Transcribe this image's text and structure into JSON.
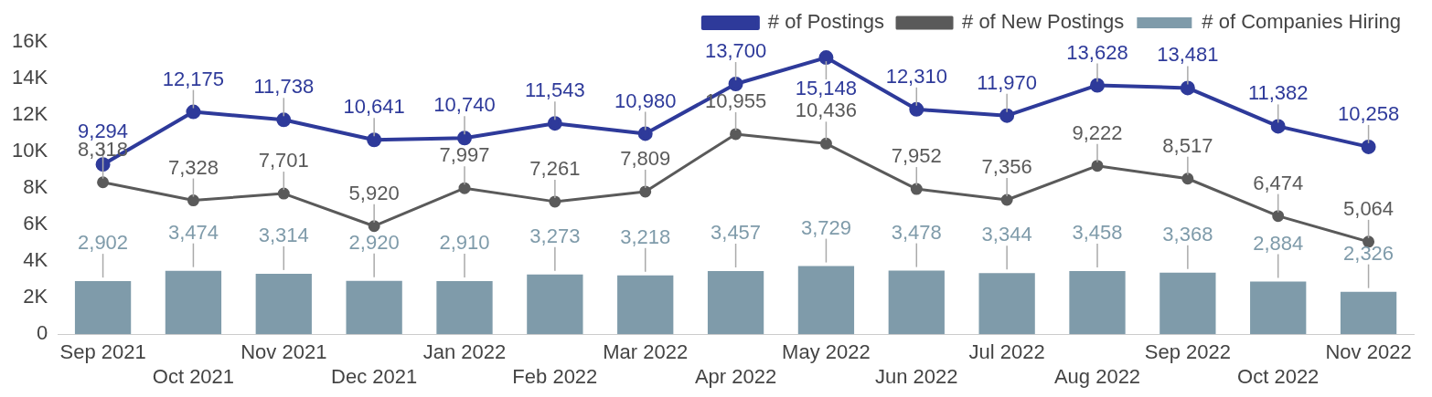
{
  "chart_data": {
    "type": "bar",
    "categories": [
      "Sep 2021",
      "Oct 2021",
      "Nov 2021",
      "Dec 2021",
      "Jan 2022",
      "Feb 2022",
      "Mar 2022",
      "Apr 2022",
      "May 2022",
      "Jun 2022",
      "Jul 2022",
      "Aug 2022",
      "Sep 2022",
      "Oct 2022",
      "Nov 2022"
    ],
    "series": [
      {
        "name": "# of Postings",
        "type": "line",
        "color": "#2e3a9a",
        "values": [
          9294,
          12175,
          11738,
          10641,
          10740,
          11543,
          10980,
          13700,
          15148,
          12310,
          11970,
          13628,
          13481,
          11382,
          10258
        ],
        "value_labels": [
          "9,294",
          "12,175",
          "11,738",
          "10,641",
          "10,740",
          "11,543",
          "10,980",
          "13,700",
          "15,148",
          "12,310",
          "11,970",
          "13,628",
          "13,481",
          "11,382",
          "10,258"
        ]
      },
      {
        "name": "# of New Postings",
        "type": "line",
        "color": "#5a5a5a",
        "values": [
          8318,
          7328,
          7701,
          5920,
          7997,
          7261,
          7809,
          10955,
          10436,
          7952,
          7356,
          9222,
          8517,
          6474,
          5064
        ],
        "value_labels": [
          "8,318",
          "7,328",
          "7,701",
          "5,920",
          "7,997",
          "7,261",
          "7,809",
          "10,955",
          "10,436",
          "7,952",
          "7,356",
          "9,222",
          "8,517",
          "6,474",
          "5,064"
        ]
      },
      {
        "name": "# of Companies Hiring",
        "color": "#7f9baa",
        "values": [
          2902,
          3474,
          3314,
          2920,
          2910,
          3273,
          3218,
          3457,
          3729,
          3478,
          3344,
          3458,
          3368,
          2884,
          2326
        ],
        "value_labels": [
          "2,902",
          "3,474",
          "3,314",
          "2,920",
          "2,910",
          "3,273",
          "3,218",
          "3,457",
          "3,729",
          "3,478",
          "3,344",
          "3,458",
          "3,368",
          "2,884",
          "2,326"
        ]
      }
    ],
    "ylim": [
      0,
      16000
    ],
    "yticks": [
      0,
      {
        "value": 2000,
        "label": "2K"
      },
      {
        "value": 4000,
        "label": "4K"
      },
      {
        "value": 6000,
        "label": "6K"
      },
      {
        "value": 8000,
        "label": "8K"
      },
      {
        "value": 10000,
        "label": "10K"
      },
      {
        "value": 12000,
        "label": "12K"
      },
      {
        "value": 14000,
        "label": "14K"
      },
      {
        "value": 16000,
        "label": "16K"
      }
    ],
    "grid": false,
    "legend": "top right",
    "marker": "circle",
    "line_style": "solid"
  }
}
